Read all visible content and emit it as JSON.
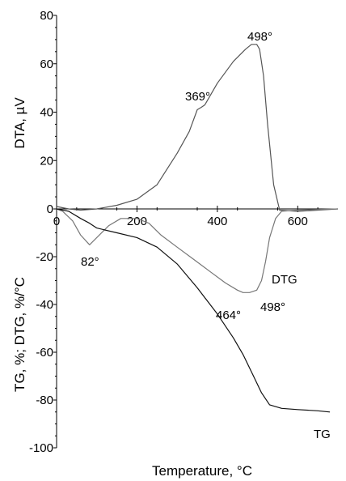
{
  "chart_data": {
    "type": "line",
    "xlabel": "Temperature, °C",
    "xlim": [
      0,
      700
    ],
    "x_ticks": [
      0,
      200,
      400,
      600
    ],
    "x_tick_labels": [
      "0",
      "200",
      "400",
      "600"
    ],
    "upper_ylabel": "DTA, µV",
    "upper_ylim": [
      0,
      80
    ],
    "upper_y_ticks": [
      0,
      20,
      40,
      60,
      80
    ],
    "upper_y_tick_labels": [
      "0",
      "20",
      "40",
      "60",
      "80"
    ],
    "lower_ylabel": "TG, %;   DTG, %/°C",
    "lower_ylim": [
      -100,
      0
    ],
    "lower_y_ticks": [
      -100,
      -80,
      -60,
      -40,
      -20,
      0
    ],
    "lower_y_tick_labels": [
      "-100",
      "-80",
      "-60",
      "-40",
      "-20",
      "0"
    ],
    "grid": false,
    "series": [
      {
        "key": "DTA",
        "color": "#555555",
        "panel": "upper",
        "points": [
          [
            0,
            1
          ],
          [
            30,
            0
          ],
          [
            60,
            -0.5
          ],
          [
            100,
            0
          ],
          [
            150,
            1.5
          ],
          [
            200,
            4
          ],
          [
            250,
            10
          ],
          [
            300,
            23
          ],
          [
            330,
            32
          ],
          [
            350,
            41
          ],
          [
            360,
            42
          ],
          [
            369,
            43
          ],
          [
            400,
            52
          ],
          [
            440,
            61
          ],
          [
            470,
            66
          ],
          [
            485,
            68
          ],
          [
            498,
            68
          ],
          [
            505,
            66
          ],
          [
            515,
            55
          ],
          [
            525,
            35
          ],
          [
            540,
            10
          ],
          [
            555,
            -0.5
          ],
          [
            600,
            -1
          ],
          [
            650,
            -0.5
          ],
          [
            700,
            0
          ]
        ]
      },
      {
        "key": "DTG",
        "color": "#777777",
        "panel": "lower",
        "points": [
          [
            0,
            0
          ],
          [
            15,
            -1
          ],
          [
            40,
            -5
          ],
          [
            60,
            -11
          ],
          [
            82,
            -15
          ],
          [
            100,
            -12
          ],
          [
            130,
            -7
          ],
          [
            160,
            -4
          ],
          [
            200,
            -4
          ],
          [
            230,
            -6
          ],
          [
            260,
            -11
          ],
          [
            300,
            -16
          ],
          [
            340,
            -21
          ],
          [
            380,
            -26
          ],
          [
            420,
            -31
          ],
          [
            450,
            -34
          ],
          [
            464,
            -35
          ],
          [
            480,
            -35
          ],
          [
            498,
            -34
          ],
          [
            510,
            -30
          ],
          [
            520,
            -22
          ],
          [
            530,
            -12
          ],
          [
            545,
            -4
          ],
          [
            560,
            -1
          ],
          [
            600,
            -0.5
          ],
          [
            700,
            0
          ]
        ]
      },
      {
        "key": "TG",
        "color": "#111111",
        "panel": "lower",
        "points": [
          [
            0,
            0
          ],
          [
            30,
            -1
          ],
          [
            60,
            -4
          ],
          [
            82,
            -6
          ],
          [
            100,
            -8
          ],
          [
            150,
            -10
          ],
          [
            200,
            -12
          ],
          [
            250,
            -16
          ],
          [
            300,
            -23
          ],
          [
            350,
            -33
          ],
          [
            400,
            -44
          ],
          [
            440,
            -54
          ],
          [
            464,
            -61
          ],
          [
            490,
            -70
          ],
          [
            510,
            -77
          ],
          [
            530,
            -82
          ],
          [
            560,
            -83.5
          ],
          [
            600,
            -84
          ],
          [
            650,
            -84.5
          ],
          [
            680,
            -85
          ]
        ]
      }
    ],
    "labels": {
      "tg_label": "TG",
      "dtg_label": "DTG",
      "peak_82": "82°",
      "peak_369": "369°",
      "peak_464": "464°",
      "peak_498_dta": "498°",
      "peak_498_dtg": "498°"
    }
  }
}
